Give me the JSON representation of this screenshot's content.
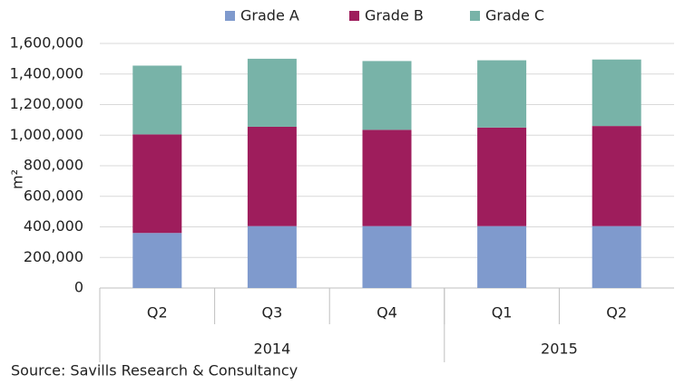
{
  "chart_data": {
    "type": "stacked_bar",
    "categories": [
      "Q2",
      "Q3",
      "Q4",
      "Q1",
      "Q2"
    ],
    "x_groups": [
      {
        "name": "2014",
        "count": 3
      },
      {
        "name": "2015",
        "count": 2
      }
    ],
    "series": [
      {
        "name": "Grade A",
        "color": "#7f9acd",
        "values": [
          360000,
          405000,
          405000,
          405000,
          405000
        ]
      },
      {
        "name": "Grade B",
        "color": "#9e1d5c",
        "values": [
          645000,
          650000,
          630000,
          645000,
          655000
        ]
      },
      {
        "name": "Grade C",
        "color": "#78b3a8",
        "values": [
          450000,
          445000,
          450000,
          440000,
          435000
        ]
      }
    ],
    "y_label": "m²",
    "ylim": [
      0,
      1600000
    ],
    "yticks": [
      0,
      {
        "value": 200000,
        "label": "200,000"
      },
      {
        "value": 400000,
        "label": "400,000"
      },
      {
        "value": 600000,
        "label": "600,000"
      },
      {
        "value": 800000,
        "label": "800,000"
      },
      {
        "value": 1000000,
        "label": "1,000,000"
      },
      {
        "value": 1200000,
        "label": "1,200,000"
      },
      {
        "value": 1400000,
        "label": "1,400,000"
      },
      {
        "value": 1600000,
        "label": "1,600,000"
      }
    ],
    "grid": true,
    "legend": "top",
    "source": "Source: Savills Research & Consultancy"
  }
}
